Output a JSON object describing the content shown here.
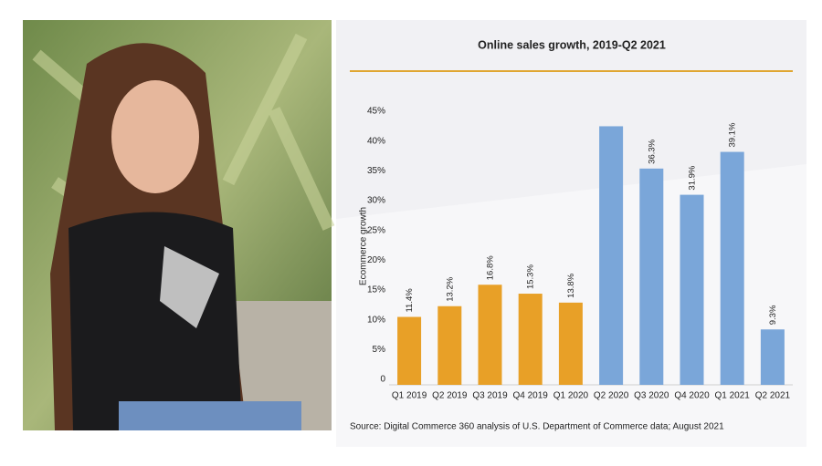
{
  "chart_data": {
    "type": "bar",
    "title": "Online sales growth, 2019-Q2 2021",
    "y_label": "Ecommerce growth",
    "source": "Source: Digital Commerce 360 analysis of U.S. Department of Commerce data; August 2021",
    "categories": [
      "Q1 2019",
      "Q2 2019",
      "Q3 2019",
      "Q4 2019",
      "Q1 2020",
      "Q2 2020",
      "Q3 2020",
      "Q4 2020",
      "Q1 2021",
      "Q2 2021"
    ],
    "values": [
      11.4,
      13.2,
      16.8,
      15.3,
      13.8,
      43.4,
      36.3,
      31.9,
      39.1,
      9.3
    ],
    "value_labels": [
      "11.4%",
      "13.2%",
      "16.8%",
      "15.3%",
      "13.8%",
      null,
      "36.3%",
      "31.9%",
      "39.1%",
      "9.3%"
    ],
    "colors": [
      "#e8a027",
      "#e8a027",
      "#e8a027",
      "#e8a027",
      "#e8a027",
      "#7aa6d9",
      "#7aa6d9",
      "#7aa6d9",
      "#7aa6d9",
      "#7aa6d9"
    ],
    "title_rule_color": "#e0a630",
    "ylim": [
      0,
      45
    ],
    "yticks": [
      0,
      {
        "value": 5,
        "label": "5%"
      },
      {
        "value": 10,
        "label": "10%"
      },
      {
        "value": 15,
        "label": "15%"
      },
      {
        "value": 20,
        "label": "20%"
      },
      {
        "value": 25,
        "label": "25%"
      },
      {
        "value": 30,
        "label": "30%"
      },
      {
        "value": 35,
        "label": "35%"
      },
      {
        "value": 40,
        "label": "40%"
      },
      {
        "value": 45,
        "label": "45%"
      }
    ],
    "grid": false
  }
}
